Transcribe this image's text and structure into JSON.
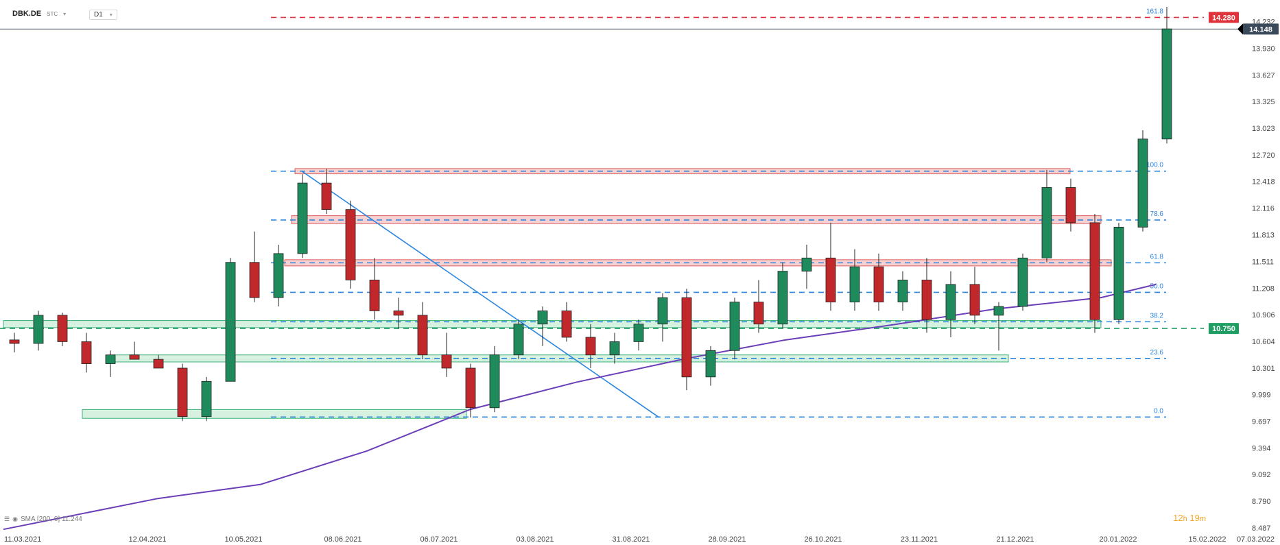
{
  "header": {
    "symbol": "DBK.DE",
    "sub": "STC",
    "caret": "▾",
    "timeframe": "D1",
    "timeframe_caret": "▾"
  },
  "indicator": {
    "label": "SMA [200, 0] 11.244",
    "icon": "list-icon",
    "eye": "eye-icon"
  },
  "timer": {
    "hours": "12",
    "h": "h",
    "minutes": "19",
    "m": "m"
  },
  "colors": {
    "up": "#1f8a5b",
    "down": "#c0282b",
    "sma": "#6b3fb8",
    "fib": "#2a86e0",
    "trend": "#2a86e0",
    "resist_fill": "#f5c5c5",
    "resist_stroke": "#d9605c",
    "support_fill": "#c8ecd6",
    "support_stroke": "#3bb27a",
    "target": "#e0323a",
    "current": "#3a4a5a",
    "level_green": "#1f9d63"
  },
  "chart_data": {
    "type": "candlestick",
    "ylim": [
      8.487,
      14.4
    ],
    "y_ticks": [
      "14.232",
      "13.930",
      "13.627",
      "13.325",
      "13.023",
      "12.720",
      "12.418",
      "12.116",
      "11.813",
      "11.511",
      "11.208",
      "10.906",
      "10.604",
      "10.301",
      "9.999",
      "9.697",
      "9.394",
      "9.092",
      "8.790",
      "8.487"
    ],
    "x_ticks": [
      "11.03.2021",
      "12.04.2021",
      "10.05.2021",
      "08.06.2021",
      "06.07.2021",
      "03.08.2021",
      "31.08.2021",
      "28.09.2021",
      "26.10.2021",
      "23.11.2021",
      "21.12.2021",
      "20.01.2022",
      "15.02.2022",
      "07.03.2022"
    ],
    "fib_levels": [
      {
        "label": "161.8",
        "value": 14.28
      },
      {
        "label": "100.0",
        "value": 12.535
      },
      {
        "label": "78.6",
        "value": 11.981
      },
      {
        "label": "61.8",
        "value": 11.495
      },
      {
        "label": "50.0",
        "value": 11.16
      },
      {
        "label": "38.2",
        "value": 10.826
      },
      {
        "label": "23.6",
        "value": 10.41
      },
      {
        "label": "0.0",
        "value": 9.745
      }
    ],
    "price_tags": [
      {
        "label": "14.280",
        "value": 14.28,
        "kind": "target"
      },
      {
        "label": "14.148",
        "value": 14.148,
        "kind": "current"
      },
      {
        "label": "10.750",
        "value": 10.75,
        "kind": "level"
      }
    ],
    "resistance_zones": [
      {
        "x_from": "2021-05-25",
        "x_to": "2022-01-06",
        "y": [
          12.505,
          12.565
        ]
      },
      {
        "x_from": "2021-05-24",
        "x_to": "2022-01-15",
        "y": [
          11.94,
          12.03
        ]
      },
      {
        "x_from": "2021-05-22",
        "x_to": "2022-01-18",
        "y": [
          11.46,
          11.53
        ]
      }
    ],
    "support_zones": [
      {
        "x_from": "2021-03-01",
        "x_to": "2022-01-15",
        "y": [
          10.76,
          10.84
        ]
      },
      {
        "x_from": "2021-04-02",
        "x_to": "2021-12-19",
        "y": [
          10.37,
          10.45
        ]
      },
      {
        "x_from": "2021-03-24",
        "x_to": "2021-07-14",
        "y": [
          9.73,
          9.83
        ]
      }
    ],
    "trendline": {
      "from": {
        "x": "2021-05-27",
        "y": 12.535
      },
      "to": {
        "x": "2021-09-08",
        "y": 9.745
      }
    },
    "sma_200": [
      {
        "x": "2021-03-01",
        "y": 8.47
      },
      {
        "x": "2021-04-15",
        "y": 8.82
      },
      {
        "x": "2021-05-15",
        "y": 8.98
      },
      {
        "x": "2021-06-15",
        "y": 9.36
      },
      {
        "x": "2021-07-15",
        "y": 9.83
      },
      {
        "x": "2021-08-15",
        "y": 10.14
      },
      {
        "x": "2021-09-15",
        "y": 10.4
      },
      {
        "x": "2021-10-15",
        "y": 10.62
      },
      {
        "x": "2021-11-15",
        "y": 10.79
      },
      {
        "x": "2021-12-15",
        "y": 10.97
      },
      {
        "x": "2022-01-15",
        "y": 11.1
      },
      {
        "x": "2022-01-31",
        "y": 11.25
      }
    ],
    "candles": [
      [
        "2021-03-01",
        10.62,
        10.7,
        10.48,
        10.58
      ],
      [
        "2021-03-08",
        10.58,
        10.95,
        10.5,
        10.9
      ],
      [
        "2021-03-15",
        10.9,
        10.93,
        10.55,
        10.6
      ],
      [
        "2021-03-22",
        10.6,
        10.7,
        10.25,
        10.35
      ],
      [
        "2021-03-29",
        10.35,
        10.5,
        10.2,
        10.45
      ],
      [
        "2021-04-05",
        10.45,
        10.6,
        10.4,
        10.4
      ],
      [
        "2021-04-12",
        10.4,
        10.45,
        10.3,
        10.3
      ],
      [
        "2021-04-19",
        10.3,
        10.35,
        9.7,
        9.75
      ],
      [
        "2021-04-26",
        9.75,
        10.2,
        9.7,
        10.15
      ],
      [
        "2021-05-03",
        10.15,
        11.55,
        10.15,
        11.5
      ],
      [
        "2021-05-10",
        11.5,
        11.85,
        11.05,
        11.1
      ],
      [
        "2021-05-17",
        11.1,
        11.7,
        11.0,
        11.6
      ],
      [
        "2021-05-24",
        11.6,
        12.5,
        11.55,
        12.4
      ],
      [
        "2021-05-31",
        12.4,
        12.56,
        12.05,
        12.1
      ],
      [
        "2021-06-07",
        12.1,
        12.2,
        11.2,
        11.3
      ],
      [
        "2021-06-14",
        11.3,
        11.55,
        10.85,
        10.95
      ],
      [
        "2021-06-21",
        10.95,
        11.1,
        10.75,
        10.9
      ],
      [
        "2021-06-28",
        10.9,
        11.05,
        10.4,
        10.45
      ],
      [
        "2021-07-05",
        10.45,
        10.7,
        10.2,
        10.3
      ],
      [
        "2021-07-12",
        10.3,
        10.35,
        9.74,
        9.85
      ],
      [
        "2021-07-19",
        9.85,
        10.55,
        9.8,
        10.45
      ],
      [
        "2021-07-26",
        10.45,
        10.85,
        10.4,
        10.8
      ],
      [
        "2021-08-02",
        10.8,
        11.0,
        10.55,
        10.95
      ],
      [
        "2021-08-09",
        10.95,
        11.05,
        10.6,
        10.65
      ],
      [
        "2021-08-16",
        10.65,
        10.8,
        10.3,
        10.45
      ],
      [
        "2021-08-23",
        10.45,
        10.7,
        10.35,
        10.6
      ],
      [
        "2021-08-30",
        10.6,
        10.85,
        10.5,
        10.8
      ],
      [
        "2021-09-06",
        10.8,
        11.15,
        10.6,
        11.1
      ],
      [
        "2021-09-13",
        11.1,
        11.2,
        10.05,
        10.2
      ],
      [
        "2021-09-20",
        10.2,
        10.55,
        10.1,
        10.5
      ],
      [
        "2021-09-27",
        10.5,
        11.1,
        10.4,
        11.05
      ],
      [
        "2021-10-04",
        11.05,
        11.3,
        10.7,
        10.8
      ],
      [
        "2021-10-11",
        10.8,
        11.5,
        10.75,
        11.4
      ],
      [
        "2021-10-18",
        11.4,
        11.7,
        11.2,
        11.55
      ],
      [
        "2021-10-25",
        11.55,
        11.95,
        10.95,
        11.05
      ],
      [
        "2021-11-01",
        11.05,
        11.65,
        10.95,
        11.45
      ],
      [
        "2021-11-08",
        11.45,
        11.6,
        10.95,
        11.05
      ],
      [
        "2021-11-15",
        11.05,
        11.4,
        10.95,
        11.3
      ],
      [
        "2021-11-22",
        11.3,
        11.55,
        10.7,
        10.85
      ],
      [
        "2021-11-29",
        10.85,
        11.4,
        10.65,
        11.25
      ],
      [
        "2021-12-06",
        11.25,
        11.45,
        10.8,
        10.9
      ],
      [
        "2021-12-13",
        10.9,
        11.05,
        10.5,
        11.0
      ],
      [
        "2021-12-20",
        11.0,
        11.6,
        10.95,
        11.55
      ],
      [
        "2021-12-27",
        11.55,
        12.55,
        11.5,
        12.35
      ],
      [
        "2022-01-03",
        12.35,
        12.45,
        11.85,
        11.95
      ],
      [
        "2022-01-10",
        11.95,
        12.05,
        10.7,
        10.85
      ],
      [
        "2022-01-17",
        10.85,
        11.95,
        10.8,
        11.9
      ],
      [
        "2022-01-24",
        11.9,
        13.0,
        11.85,
        12.9
      ],
      [
        "2022-01-31",
        12.9,
        14.4,
        12.85,
        14.15
      ]
    ]
  }
}
